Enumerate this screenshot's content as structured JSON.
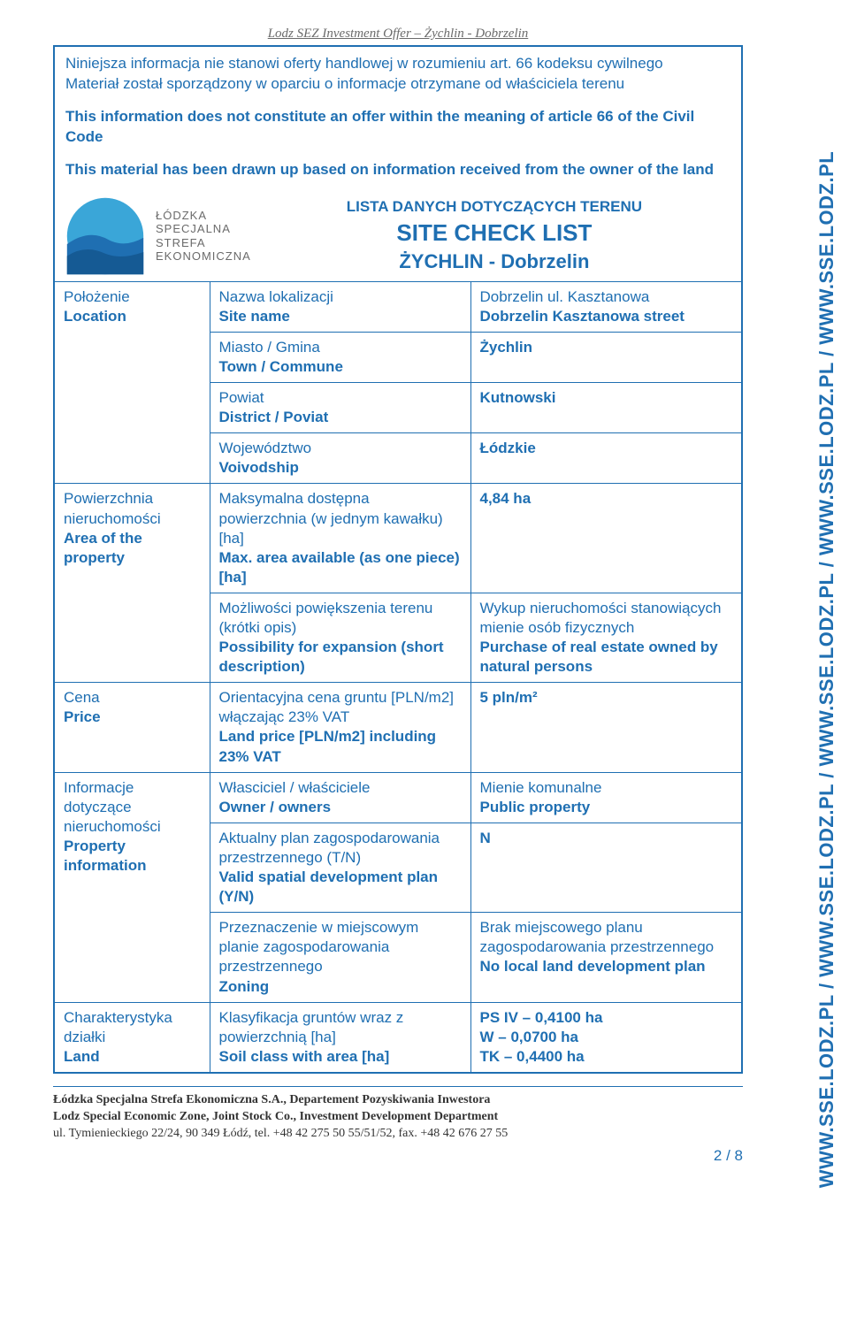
{
  "header": "Lodz SEZ Investment Offer – Żychlin - Dobrzelin",
  "intro": {
    "pl1": "Niniejsza informacja nie stanowi oferty handlowej w rozumieniu art. 66 kodeksu cywilnego",
    "pl2": "Materiał został sporządzony w oparciu o informacje otrzymane od właściciela terenu",
    "en1": "This information does not constitute an offer within the meaning of article 66 of the Civil Code",
    "en2": "This material has been drawn up based on information received from the owner of the land"
  },
  "logo": {
    "l1": "ŁÓDZKA",
    "l2": "SPECJALNA",
    "l3": "STREFA",
    "l4": "EKONOMICZNA"
  },
  "title": {
    "l1": "LISTA DANYCH DOTYCZĄCYCH TERENU",
    "l2": "SITE CHECK LIST",
    "l3": "ŻYCHLIN - Dobrzelin"
  },
  "rows": [
    {
      "cat_pl": "Położenie",
      "cat_en": "Location",
      "items": [
        {
          "label_pl": "Nazwa lokalizacji",
          "label_en": "Site name",
          "val_pl": "Dobrzelin ul. Kasztanowa",
          "val_en": "Dobrzelin Kasztanowa street"
        },
        {
          "label_pl": "Miasto / Gmina",
          "label_en": "Town / Commune",
          "val_pl": "",
          "val_en": "Żychlin"
        },
        {
          "label_pl": "Powiat",
          "label_en": "District / Poviat",
          "val_pl": "",
          "val_en": "Kutnowski"
        },
        {
          "label_pl": "Województwo",
          "label_en": "Voivodship",
          "val_pl": "",
          "val_en": "Łódzkie"
        }
      ]
    },
    {
      "cat_pl": "Powierzchnia nieruchomości",
      "cat_en": "Area of the property",
      "items": [
        {
          "label_pl": "Maksymalna dostępna powierzchnia (w jednym kawałku) [ha]",
          "label_en": "Max. area available (as one piece) [ha]",
          "val_pl": "",
          "val_en": "4,84 ha"
        },
        {
          "label_pl": "Możliwości powiększenia terenu (krótki opis)",
          "label_en": "Possibility for expansion (short description)",
          "val_pl": "Wykup nieruchomości stanowiących mienie osób fizycznych",
          "val_en": "Purchase of real estate owned by natural persons"
        }
      ]
    },
    {
      "cat_pl": "Cena",
      "cat_en": "Price",
      "items": [
        {
          "label_pl": "Orientacyjna cena gruntu [PLN/m2] włączając 23% VAT",
          "label_en": "Land price [PLN/m2] including 23% VAT",
          "val_pl": "",
          "val_en": "5 pln/m²"
        }
      ]
    },
    {
      "cat_pl": "Informacje dotyczące nieruchomości",
      "cat_en": "Property information",
      "items": [
        {
          "label_pl": "Własciciel / właściciele",
          "label_en": "Owner / owners",
          "val_pl": "Mienie komunalne",
          "val_en": "Public property"
        },
        {
          "label_pl": "Aktualny plan zagospodarowania przestrzennego (T/N)",
          "label_en": "Valid spatial development plan (Y/N)",
          "val_pl": "",
          "val_en": "N"
        },
        {
          "label_pl": "Przeznaczenie w miejscowym planie zagospodarowania przestrzennego",
          "label_en": "Zoning",
          "val_pl": "Brak miejscowego planu zagospodarowania przestrzennego",
          "val_en": "No local land development plan"
        }
      ]
    },
    {
      "cat_pl": "Charakterystyka działki",
      "cat_en": "Land",
      "items": [
        {
          "label_pl": "Klasyfikacja gruntów wraz z powierzchnią [ha]",
          "label_en": "Soil class with area [ha]",
          "val_pl": "",
          "val_en": "PS IV – 0,4100 ha\nW – 0,0700 ha\nTK – 0,4400 ha"
        }
      ]
    }
  ],
  "footer": {
    "l1": "Łódzka Specjalna Strefa Ekonomiczna S.A., Departement Pozyskiwania Inwestora",
    "l2": "Lodz Special Economic Zone, Joint Stock Co., Investment Development Department",
    "l3": "ul. Tymienieckiego 22/24, 90 349 Łódź, tel. +48 42 275 50 55/51/52, fax. +48 42 676 27 55"
  },
  "page_num": "2 / 8",
  "side_url": "WWW.SSE.LODZ.PL / WWW.SSE.LODZ.PL / WWW.SSE.LODZ.PL / WWW.SSE.LODZ.PL / WWW.SSE.LODZ.PL"
}
